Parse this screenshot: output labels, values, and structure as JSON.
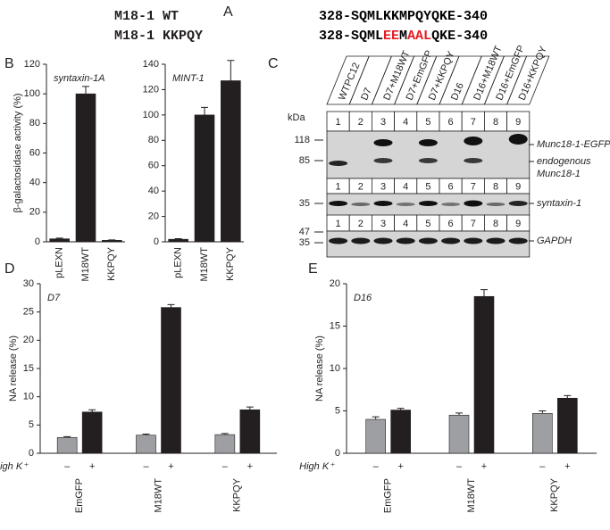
{
  "panel_labels": [
    "A",
    "B",
    "C",
    "D",
    "E"
  ],
  "panel_a": {
    "rows": [
      {
        "name": "M18-1 WT",
        "segments": [
          {
            "text": "328-SQMLKKMPQYQKE-340",
            "color": "#000000"
          }
        ]
      },
      {
        "name": "M18-1 KKPQY",
        "segments": [
          {
            "text": "328-SQML",
            "color": "#000000"
          },
          {
            "text": "EE",
            "color": "#e31e24"
          },
          {
            "text": "M",
            "color": "#000000"
          },
          {
            "text": "AAL",
            "color": "#e31e24"
          },
          {
            "text": "QKE-340",
            "color": "#000000"
          }
        ]
      }
    ]
  },
  "panel_c": {
    "unit": "kDa",
    "lanes": [
      "WTPC12",
      "D7",
      "D7+M18WT",
      "D7+EmGFP",
      "D7+KKPQY",
      "D16",
      "D16+M18WT",
      "D16+EmGFP",
      "D16+KKPQY"
    ],
    "lane_numbers": [
      "1",
      "2",
      "3",
      "4",
      "5",
      "6",
      "7",
      "8",
      "9"
    ],
    "blots": [
      {
        "markers": [
          118,
          85
        ],
        "labels": [
          [
            "Munc18-1-EGFP"
          ],
          [
            "endogenous",
            "Munc18-1"
          ]
        ]
      },
      {
        "markers": [
          35
        ],
        "labels": [
          [
            "syntaxin-1"
          ]
        ]
      },
      {
        "markers": [
          47,
          35
        ],
        "labels": [
          [
            "GAPDH"
          ]
        ]
      }
    ]
  },
  "chart_data": [
    {
      "type": "bar",
      "title": "syntaxin-1A",
      "ylabel": "β-galactosidase activity (%)",
      "categories": [
        "pLEXN",
        "M18WT",
        "KKPQY"
      ],
      "values": [
        2,
        100,
        1
      ],
      "errors": [
        0.5,
        5,
        0.3
      ],
      "color": "#231f20",
      "ylim": [
        0,
        120
      ],
      "yticks": [
        0,
        20,
        40,
        60,
        80,
        100,
        120
      ]
    },
    {
      "type": "bar",
      "title": "MINT-1",
      "categories": [
        "pLEXN",
        "M18WT",
        "KKPQY"
      ],
      "values": [
        2,
        100,
        127
      ],
      "errors": [
        0.5,
        6,
        16
      ],
      "color": "#231f20",
      "ylim": [
        0,
        140
      ],
      "yticks": [
        0,
        20,
        40,
        60,
        80,
        100,
        120,
        140
      ]
    },
    {
      "type": "grouped_bar",
      "title": "D7",
      "ylabel": "NA release (%)",
      "series_title": "High K⁺",
      "categories": [
        "EmGFP",
        "M18WT",
        "KKPQY"
      ],
      "series": [
        {
          "name": "–",
          "color": "#9d9fa2",
          "values": [
            2.8,
            3.2,
            3.3
          ],
          "errors": [
            0.15,
            0.2,
            0.2
          ]
        },
        {
          "name": "+",
          "color": "#231f20",
          "values": [
            7.3,
            25.8,
            7.7
          ],
          "errors": [
            0.4,
            0.5,
            0.5
          ]
        }
      ],
      "ylim": [
        0,
        30
      ],
      "yticks": [
        0,
        5,
        10,
        15,
        20,
        25,
        30
      ]
    },
    {
      "type": "grouped_bar",
      "title": "D16",
      "ylabel": "NA release (%)",
      "series_title": "High K⁺",
      "categories": [
        "EmGFP",
        "M18WT",
        "KKPQY"
      ],
      "series": [
        {
          "name": "–",
          "color": "#9d9fa2",
          "values": [
            4.0,
            4.5,
            4.7
          ],
          "errors": [
            0.3,
            0.25,
            0.3
          ]
        },
        {
          "name": "+",
          "color": "#231f20",
          "values": [
            5.1,
            18.5,
            6.5
          ],
          "errors": [
            0.2,
            0.8,
            0.3
          ]
        }
      ],
      "ylim": [
        0,
        20
      ],
      "yticks": [
        0,
        5,
        10,
        15,
        20
      ]
    }
  ]
}
